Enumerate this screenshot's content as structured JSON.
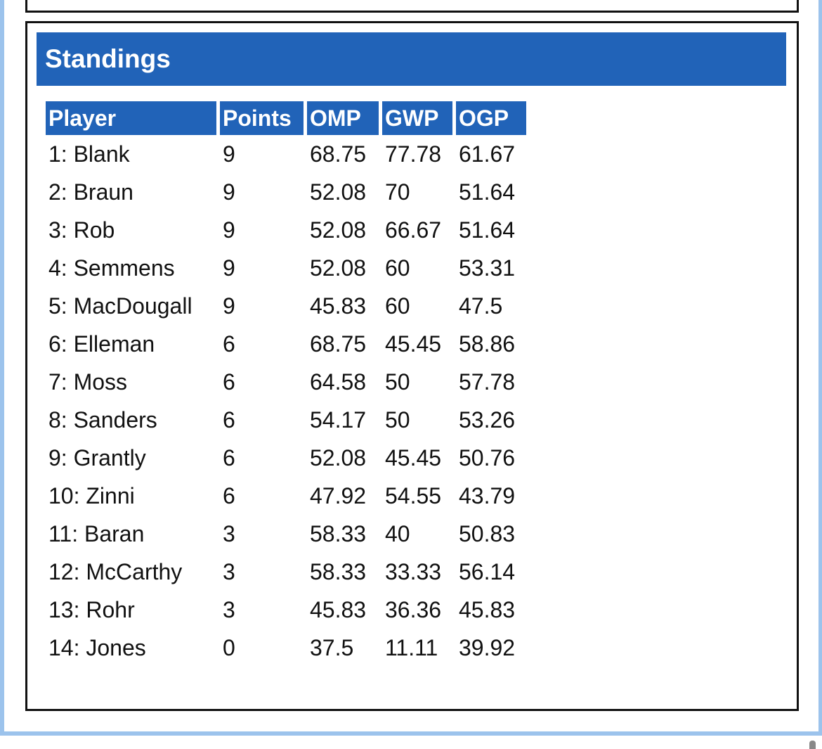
{
  "title": "Standings",
  "columns": [
    "Player",
    "Points",
    "OMP",
    "GWP",
    "OGP"
  ],
  "rows": [
    [
      "1: Blank",
      "9",
      "68.75",
      "77.78",
      "61.67"
    ],
    [
      "2: Braun",
      "9",
      "52.08",
      "70",
      "51.64"
    ],
    [
      "3: Rob",
      "9",
      "52.08",
      "66.67",
      "51.64"
    ],
    [
      "4: Semmens",
      "9",
      "52.08",
      "60",
      "53.31"
    ],
    [
      "5: MacDougall",
      "9",
      "45.83",
      "60",
      "47.5"
    ],
    [
      "6: Elleman",
      "6",
      "68.75",
      "45.45",
      "58.86"
    ],
    [
      "7: Moss",
      "6",
      "64.58",
      "50",
      "57.78"
    ],
    [
      "8: Sanders",
      "6",
      "54.17",
      "50",
      "53.26"
    ],
    [
      "9: Grantly",
      "6",
      "52.08",
      "45.45",
      "50.76"
    ],
    [
      "10: Zinni",
      "6",
      "47.92",
      "54.55",
      "43.79"
    ],
    [
      "11: Baran",
      "3",
      "58.33",
      "40",
      "50.83"
    ],
    [
      "12: McCarthy",
      "3",
      "58.33",
      "33.33",
      "56.14"
    ],
    [
      "13: Rohr",
      "3",
      "45.83",
      "36.36",
      "45.83"
    ],
    [
      "14: Jones",
      "0",
      "37.5",
      "11.11",
      "39.92"
    ]
  ],
  "colors": {
    "header": "#2163b8",
    "frame": "#9cc3ec"
  }
}
